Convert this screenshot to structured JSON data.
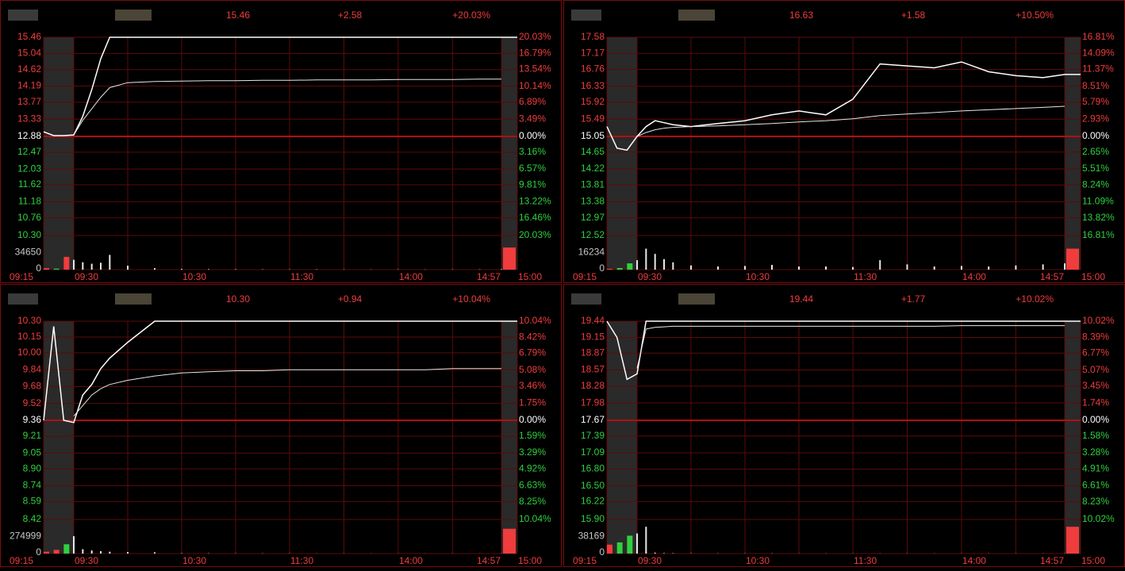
{
  "chart_data": [
    {
      "type": "line",
      "quote": {
        "price": "15.46",
        "change": "+2.58",
        "change_pct": "+20.03%"
      },
      "x": [
        "09:15",
        "09:20",
        "09:25",
        "09:30",
        "09:35",
        "09:40",
        "09:45",
        "09:50",
        "10:00",
        "10:15",
        "10:30",
        "10:45",
        "11:00",
        "11:15",
        "11:30",
        "13:15",
        "13:30",
        "13:45",
        "14:00",
        "14:15",
        "14:30",
        "14:45",
        "14:57",
        "15:00"
      ],
      "series": [
        {
          "color": "#ffffff",
          "values": [
            13.0,
            12.9,
            12.9,
            12.92,
            13.4,
            14.1,
            14.9,
            15.46,
            15.46,
            15.46,
            15.46,
            15.46,
            15.46,
            15.46,
            15.46,
            15.46,
            15.46,
            15.46,
            15.46,
            15.46,
            15.46,
            15.46,
            15.46,
            15.46
          ]
        },
        {
          "color": "#e6e6e6",
          "values": [
            null,
            null,
            null,
            12.92,
            13.3,
            13.6,
            13.9,
            14.15,
            14.28,
            14.31,
            14.32,
            14.33,
            14.33,
            14.34,
            14.34,
            14.35,
            14.35,
            14.35,
            14.36,
            14.36,
            14.36,
            14.37,
            14.37,
            null
          ]
        }
      ],
      "volume": {
        "values": [
          3000,
          2000,
          26000,
          20000,
          15000,
          12000,
          14000,
          30000,
          8000,
          3000,
          1500,
          1000,
          800,
          600,
          500,
          700,
          500,
          400,
          500,
          400,
          500,
          600,
          900,
          45000
        ],
        "vlim": [
          0,
          69300
        ],
        "vticks": [
          0,
          34650
        ]
      },
      "ylim": [
        10.3,
        15.46
      ],
      "yticks": [
        15.46,
        15.04,
        14.62,
        14.19,
        13.77,
        13.33,
        12.88,
        12.47,
        12.03,
        11.62,
        11.18,
        10.76,
        {
          "value": 10.3,
          "label": "10.30"
        }
      ],
      "y2lim": [
        -20.03,
        20.03
      ],
      "y2ticks": [
        {
          "value": 20.03,
          "label": "20.03%"
        },
        {
          "value": 16.79,
          "label": "16.79%"
        },
        {
          "value": 13.54,
          "label": "13.54%"
        },
        {
          "value": 10.14,
          "label": "10.14%"
        },
        {
          "value": 6.89,
          "label": "6.89%"
        },
        {
          "value": 3.49,
          "label": "3.49%"
        },
        {
          "value": 0,
          "label": "0.00%"
        },
        {
          "value": -3.16,
          "label": "3.16%"
        },
        {
          "value": -6.57,
          "label": "6.57%"
        },
        {
          "value": -9.81,
          "label": "9.81%"
        },
        {
          "value": -13.22,
          "label": "13.22%"
        },
        {
          "value": -16.46,
          "label": "16.46%"
        },
        {
          "value": -20.03,
          "label": "20.03%"
        }
      ],
      "xticks": [
        "09:15",
        "09:30",
        "10:30",
        "11:30",
        "14:00",
        "14:57",
        "15:00"
      ],
      "xgrid": [
        "10:00",
        "11:00",
        "13:30",
        "14:30"
      ]
    },
    {
      "type": "line",
      "quote": {
        "price": "16.63",
        "change": "+1.58",
        "change_pct": "+10.50%"
      },
      "x": [
        "09:15",
        "09:20",
        "09:25",
        "09:30",
        "09:35",
        "09:40",
        "09:45",
        "09:50",
        "10:00",
        "10:15",
        "10:30",
        "10:45",
        "11:00",
        "11:15",
        "11:30",
        "13:15",
        "13:30",
        "13:45",
        "14:00",
        "14:15",
        "14:30",
        "14:45",
        "14:57",
        "15:00"
      ],
      "series": [
        {
          "color": "#ffffff",
          "values": [
            15.3,
            14.75,
            14.7,
            15.05,
            15.3,
            15.45,
            15.4,
            15.35,
            15.3,
            15.38,
            15.45,
            15.6,
            15.7,
            15.6,
            16.0,
            16.9,
            16.85,
            16.8,
            16.95,
            16.7,
            16.6,
            16.55,
            16.63,
            16.63
          ]
        },
        {
          "color": "#e6e6e6",
          "values": [
            null,
            null,
            null,
            15.05,
            15.15,
            15.22,
            15.26,
            15.28,
            15.3,
            15.32,
            15.35,
            15.38,
            15.42,
            15.45,
            15.5,
            15.58,
            15.62,
            15.66,
            15.7,
            15.73,
            15.76,
            15.79,
            15.82,
            null
          ]
        }
      ],
      "volume": {
        "values": [
          800,
          1500,
          6000,
          9000,
          20000,
          15000,
          10000,
          7000,
          4000,
          3000,
          3500,
          4500,
          3000,
          3000,
          2500,
          9000,
          5000,
          3000,
          3500,
          3000,
          4000,
          5000,
          6000,
          20000
        ],
        "vlim": [
          0,
          32468
        ],
        "vticks": [
          0,
          16234
        ]
      },
      "ylim": [
        12.52,
        17.58
      ],
      "yticks": [
        17.58,
        17.17,
        16.76,
        16.33,
        15.92,
        15.49,
        15.05,
        14.65,
        14.22,
        13.81,
        13.38,
        12.97,
        12.52
      ],
      "y2lim": [
        -16.81,
        16.81
      ],
      "y2ticks": [
        {
          "value": 16.81,
          "label": "16.81%"
        },
        {
          "value": 14.09,
          "label": "14.09%"
        },
        {
          "value": 11.37,
          "label": "11.37%"
        },
        {
          "value": 8.51,
          "label": "8.51%"
        },
        {
          "value": 5.79,
          "label": "5.79%"
        },
        {
          "value": 2.93,
          "label": "2.93%"
        },
        {
          "value": 0,
          "label": "0.00%"
        },
        {
          "value": -2.65,
          "label": "2.65%"
        },
        {
          "value": -5.51,
          "label": "5.51%"
        },
        {
          "value": -8.24,
          "label": "8.24%"
        },
        {
          "value": -11.09,
          "label": "11.09%"
        },
        {
          "value": -13.82,
          "label": "13.82%"
        },
        {
          "value": -16.81,
          "label": "16.81%"
        }
      ],
      "xticks": [
        "09:15",
        "09:30",
        "10:30",
        "11:30",
        "14:00",
        "14:57",
        "15:00"
      ],
      "xgrid": [
        "10:00",
        "11:00",
        "13:30",
        "14:30"
      ]
    },
    {
      "type": "line",
      "quote": {
        "price": "10.30",
        "change": "+0.94",
        "change_pct": "+10.04%"
      },
      "x": [
        "09:15",
        "09:20",
        "09:25",
        "09:30",
        "09:35",
        "09:40",
        "09:45",
        "09:50",
        "10:00",
        "10:15",
        "10:30",
        "10:45",
        "11:00",
        "11:15",
        "11:30",
        "13:15",
        "13:30",
        "13:45",
        "14:00",
        "14:15",
        "14:30",
        "14:45",
        "14:57",
        "15:00"
      ],
      "series": [
        {
          "color": "#ffffff",
          "values": [
            9.36,
            10.25,
            9.36,
            9.34,
            9.6,
            9.7,
            9.85,
            9.95,
            10.1,
            10.3,
            10.3,
            10.3,
            10.3,
            10.3,
            10.3,
            10.3,
            10.3,
            10.3,
            10.3,
            10.3,
            10.3,
            10.3,
            10.3,
            10.3
          ]
        },
        {
          "color": "#e6e6e6",
          "values": [
            null,
            null,
            null,
            9.4,
            9.5,
            9.6,
            9.66,
            9.7,
            9.74,
            9.78,
            9.81,
            9.82,
            9.83,
            9.83,
            9.84,
            9.84,
            9.84,
            9.84,
            9.84,
            9.84,
            9.85,
            9.85,
            9.85,
            null
          ]
        }
      ],
      "volume": {
        "values": [
          30000,
          60000,
          150000,
          280000,
          70000,
          50000,
          40000,
          30000,
          25000,
          20000,
          5000,
          4000,
          3000,
          3000,
          2500,
          2000,
          2000,
          1500,
          1500,
          1500,
          1500,
          1500,
          2000,
          400000
        ],
        "vlim": [
          0,
          549998
        ],
        "vticks": [
          0,
          274999
        ]
      },
      "ylim": [
        8.42,
        10.3
      ],
      "yticks": [
        {
          "value": 10.3,
          "label": "10.30"
        },
        10.15,
        {
          "value": 10,
          "label": "10.00"
        },
        9.84,
        9.68,
        9.52,
        9.36,
        9.21,
        9.05,
        {
          "value": 8.9,
          "label": "8.90"
        },
        8.74,
        8.59,
        8.42
      ],
      "y2lim": [
        -10.04,
        10.04
      ],
      "y2ticks": [
        {
          "value": 10.04,
          "label": "10.04%"
        },
        {
          "value": 8.42,
          "label": "8.42%"
        },
        {
          "value": 6.79,
          "label": "6.79%"
        },
        {
          "value": 5.08,
          "label": "5.08%"
        },
        {
          "value": 3.46,
          "label": "3.46%"
        },
        {
          "value": 1.75,
          "label": "1.75%"
        },
        {
          "value": 0,
          "label": "0.00%"
        },
        {
          "value": -1.59,
          "label": "1.59%"
        },
        {
          "value": -3.29,
          "label": "3.29%"
        },
        {
          "value": -4.92,
          "label": "4.92%"
        },
        {
          "value": -6.63,
          "label": "6.63%"
        },
        {
          "value": -8.25,
          "label": "8.25%"
        },
        {
          "value": -10.04,
          "label": "10.04%"
        }
      ],
      "xticks": [
        "09:15",
        "09:30",
        "10:30",
        "11:30",
        "14:00",
        "14:57",
        "15:00"
      ],
      "xgrid": [
        "10:00",
        "11:00",
        "13:30",
        "14:30"
      ]
    },
    {
      "type": "line",
      "quote": {
        "price": "19.44",
        "change": "+1.77",
        "change_pct": "+10.02%"
      },
      "x": [
        "09:15",
        "09:20",
        "09:25",
        "09:30",
        "09:35",
        "09:40",
        "09:45",
        "09:50",
        "10:00",
        "10:15",
        "10:30",
        "10:45",
        "11:00",
        "11:15",
        "11:30",
        "13:15",
        "13:30",
        "13:45",
        "14:00",
        "14:15",
        "14:30",
        "14:45",
        "14:57",
        "15:00"
      ],
      "series": [
        {
          "color": "#ffffff",
          "values": [
            19.44,
            19.15,
            18.4,
            18.5,
            19.44,
            19.44,
            19.44,
            19.44,
            19.44,
            19.44,
            19.44,
            19.44,
            19.44,
            19.44,
            19.44,
            19.44,
            19.44,
            19.44,
            19.44,
            19.44,
            19.44,
            19.44,
            19.44,
            19.44
          ]
        },
        {
          "color": "#e6e6e6",
          "values": [
            null,
            null,
            null,
            18.6,
            19.3,
            19.33,
            19.34,
            19.35,
            19.35,
            19.35,
            19.35,
            19.35,
            19.35,
            19.35,
            19.35,
            19.35,
            19.35,
            19.35,
            19.36,
            19.36,
            19.36,
            19.36,
            19.36,
            null
          ]
        }
      ],
      "volume": {
        "values": [
          20000,
          25000,
          40000,
          45000,
          60000,
          2000,
          1000,
          800,
          600,
          500,
          400,
          400,
          300,
          300,
          300,
          300,
          300,
          300,
          300,
          300,
          300,
          300,
          300,
          60000
        ],
        "vlim": [
          0,
          76338
        ],
        "vticks": [
          0,
          38169
        ]
      },
      "ylim": [
        15.9,
        19.44
      ],
      "yticks": [
        19.44,
        19.15,
        18.87,
        18.57,
        18.28,
        17.98,
        17.67,
        17.39,
        17.09,
        {
          "value": 16.8,
          "label": "16.80"
        },
        {
          "value": 16.5,
          "label": "16.50"
        },
        16.22,
        {
          "value": 15.9,
          "label": "15.90"
        }
      ],
      "y2lim": [
        -10.02,
        10.02
      ],
      "y2ticks": [
        {
          "value": 10.02,
          "label": "10.02%"
        },
        {
          "value": 8.39,
          "label": "8.39%"
        },
        {
          "value": 6.77,
          "label": "6.77%"
        },
        {
          "value": 5.07,
          "label": "5.07%"
        },
        {
          "value": 3.45,
          "label": "3.45%"
        },
        {
          "value": 1.74,
          "label": "1.74%"
        },
        {
          "value": 0,
          "label": "0.00%"
        },
        {
          "value": -1.58,
          "label": "1.58%"
        },
        {
          "value": -3.28,
          "label": "3.28%"
        },
        {
          "value": -4.91,
          "label": "4.91%"
        },
        {
          "value": -6.61,
          "label": "6.61%"
        },
        {
          "value": -8.23,
          "label": "8.23%"
        },
        {
          "value": -10.02,
          "label": "10.02%"
        }
      ],
      "xticks": [
        "09:15",
        "09:30",
        "10:30",
        "11:30",
        "14:00",
        "14:57",
        "15:00"
      ],
      "xgrid": [
        "10:00",
        "11:00",
        "13:30",
        "14:30"
      ]
    }
  ]
}
